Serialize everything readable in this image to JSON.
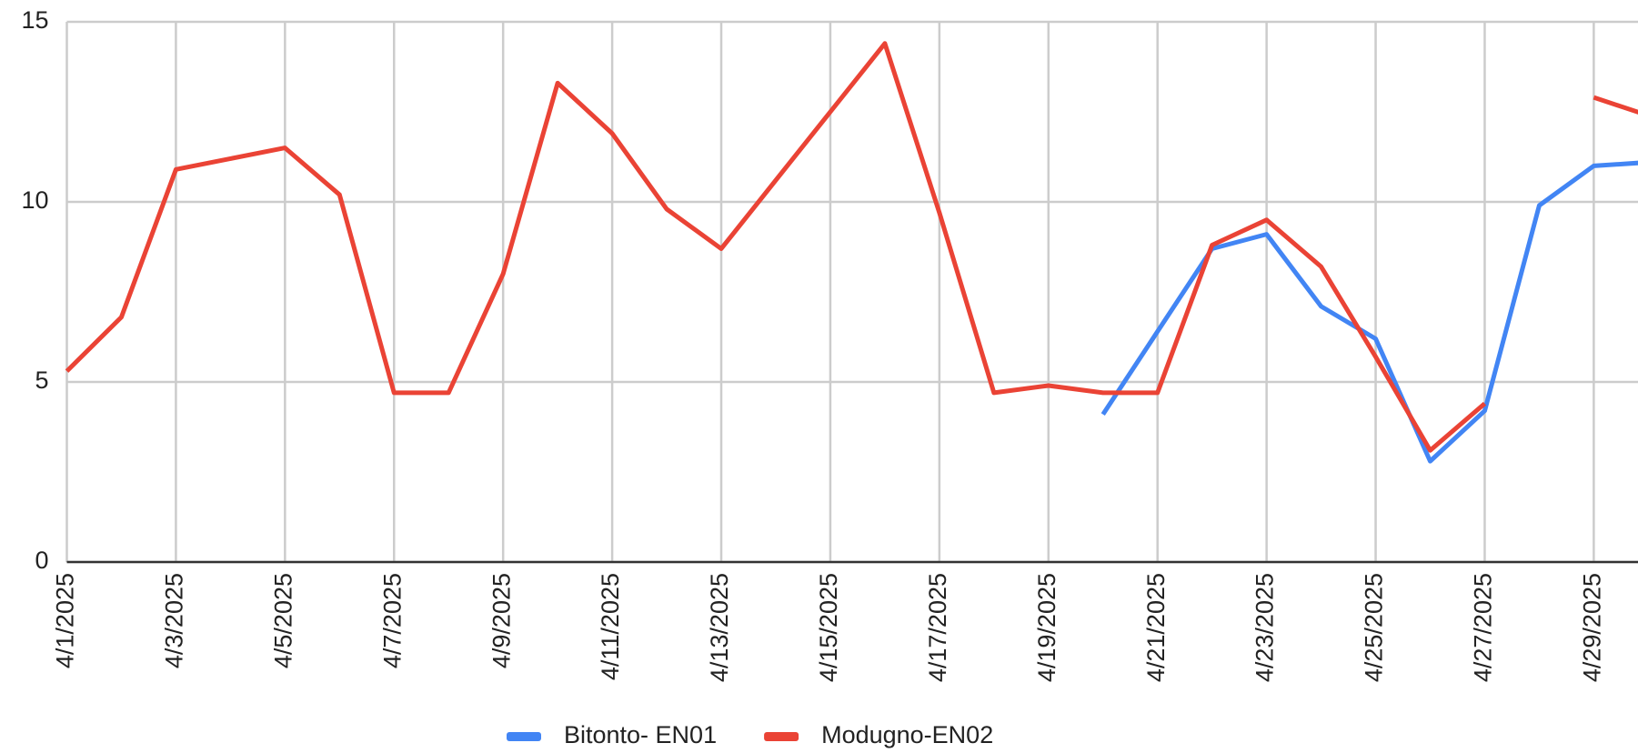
{
  "chart_data": {
    "type": "line",
    "categories": [
      "4/1/2025",
      null,
      "4/3/2025",
      null,
      "4/5/2025",
      null,
      "4/7/2025",
      null,
      "4/9/2025",
      null,
      "4/11/2025",
      null,
      "4/13/2025",
      null,
      "4/15/2025",
      null,
      "4/17/2025",
      null,
      "4/19/2025",
      null,
      "4/21/2025",
      null,
      "4/23/2025",
      null,
      "4/25/2025",
      null,
      "4/27/2025",
      null,
      "4/29/2025",
      null
    ],
    "series": [
      {
        "name": "Bitonto- EN01",
        "color": "#4285f4",
        "values": [
          null,
          null,
          null,
          null,
          null,
          null,
          null,
          null,
          null,
          null,
          null,
          null,
          null,
          null,
          null,
          null,
          null,
          null,
          null,
          4.1,
          6.4,
          8.7,
          9.1,
          7.1,
          6.2,
          2.8,
          4.2,
          9.9,
          11.0,
          11.1
        ]
      },
      {
        "name": "Modugno-EN02",
        "color": "#ea4335",
        "values": [
          5.3,
          6.8,
          10.9,
          11.2,
          11.5,
          10.2,
          4.7,
          4.7,
          8.0,
          13.3,
          11.9,
          9.8,
          8.7,
          10.6,
          12.5,
          14.4,
          9.7,
          4.7,
          4.9,
          4.7,
          4.7,
          8.8,
          9.5,
          8.2,
          5.7,
          3.1,
          4.4,
          null,
          12.9,
          12.4
        ]
      }
    ],
    "ylim": [
      0,
      15
    ],
    "yticks": [
      0,
      5,
      10,
      15
    ],
    "grid": true,
    "legend": "bottom"
  }
}
